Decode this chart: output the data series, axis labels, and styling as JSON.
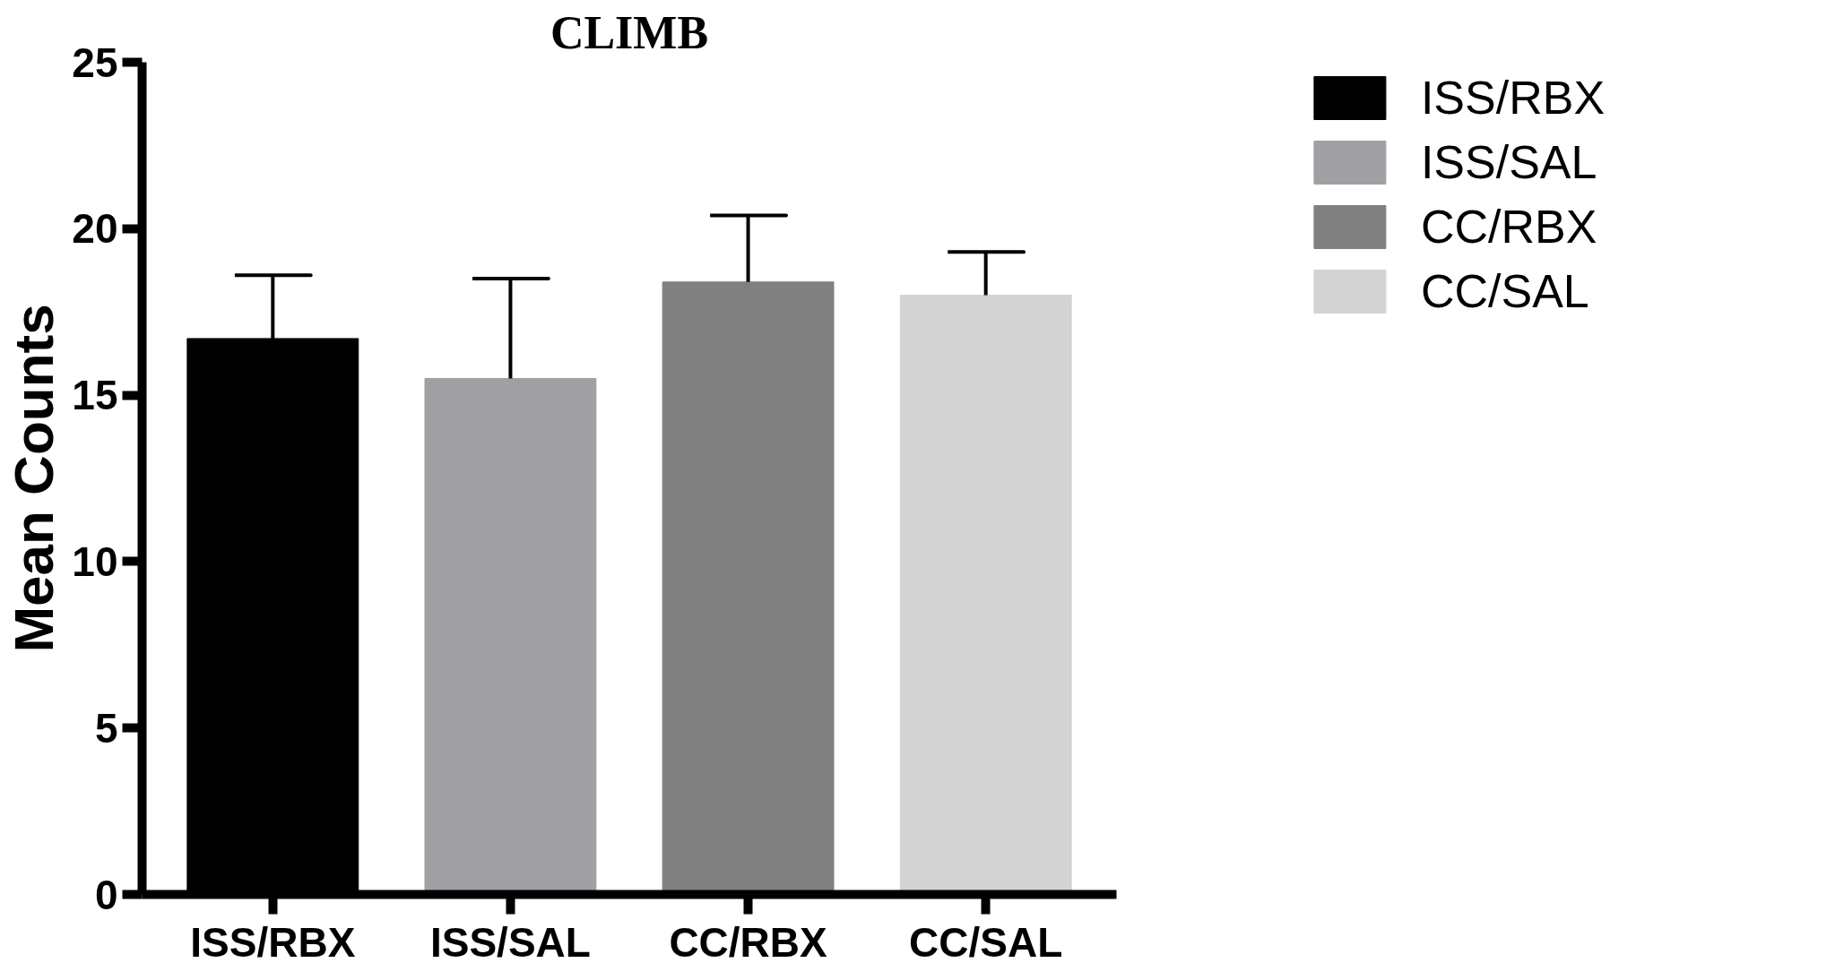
{
  "chart_data": {
    "type": "bar",
    "title": "CLIMB",
    "ylabel": "Mean Counts",
    "categories": [
      "ISS/RBX",
      "ISS/SAL",
      "CC/RBX",
      "CC/SAL"
    ],
    "series": [
      {
        "name": "ISS/RBX",
        "color": "#000000",
        "values": [
          16.7,
          null,
          null,
          null
        ],
        "errors": [
          [
            16.7,
            18.6
          ],
          null,
          null,
          null
        ]
      },
      {
        "name": "ISS/SAL",
        "color": "#a0a0a4",
        "values": [
          null,
          15.5,
          null,
          null
        ],
        "errors": [
          null,
          [
            15.5,
            18.5
          ],
          null,
          null
        ]
      },
      {
        "name": "CC/RBX",
        "color": "#808080",
        "values": [
          null,
          null,
          18.4,
          null
        ],
        "errors": [
          null,
          null,
          [
            18.4,
            20.4
          ],
          null
        ]
      },
      {
        "name": "CC/SAL",
        "color": "#d3d3d3",
        "values": [
          null,
          null,
          null,
          18.0
        ],
        "errors": [
          null,
          null,
          null,
          [
            18.0,
            19.3
          ]
        ]
      }
    ],
    "ylim": [
      0,
      25
    ],
    "yticks": [
      0,
      5,
      10,
      15,
      20,
      25
    ],
    "grid": false,
    "legend": "top right"
  }
}
